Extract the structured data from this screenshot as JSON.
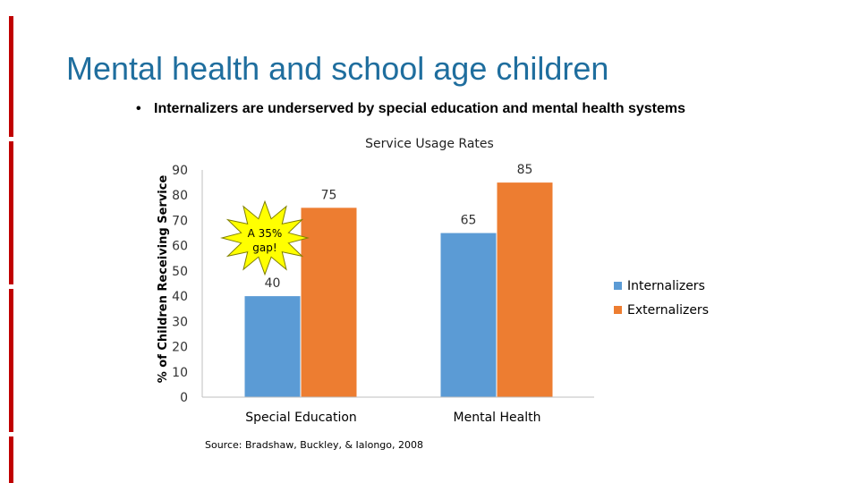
{
  "slide": {
    "title": "Mental health and school age children",
    "bullet": "Internalizers are underserved by special education and mental health systems",
    "source": "Source: Bradshaw, Buckley, & Ialongo, 2008"
  },
  "chart_data": {
    "type": "bar",
    "title": "Service Usage Rates",
    "ylabel": "% of Children Receiving Service",
    "xlabel": "",
    "categories": [
      "Special Education",
      "Mental Health"
    ],
    "series": [
      {
        "name": "Internalizers",
        "values": [
          40,
          65
        ],
        "color": "#5b9bd5"
      },
      {
        "name": "Externalizers",
        "values": [
          75,
          85
        ],
        "color": "#ed7d31"
      }
    ],
    "yticks": [
      0,
      10,
      20,
      30,
      40,
      50,
      60,
      70,
      80,
      90
    ],
    "ylim": [
      0,
      90
    ],
    "grid": false,
    "legend": "right",
    "annotation": {
      "text": "A 35% gap!",
      "shape": "starburst",
      "fill": "#ffff00"
    }
  }
}
